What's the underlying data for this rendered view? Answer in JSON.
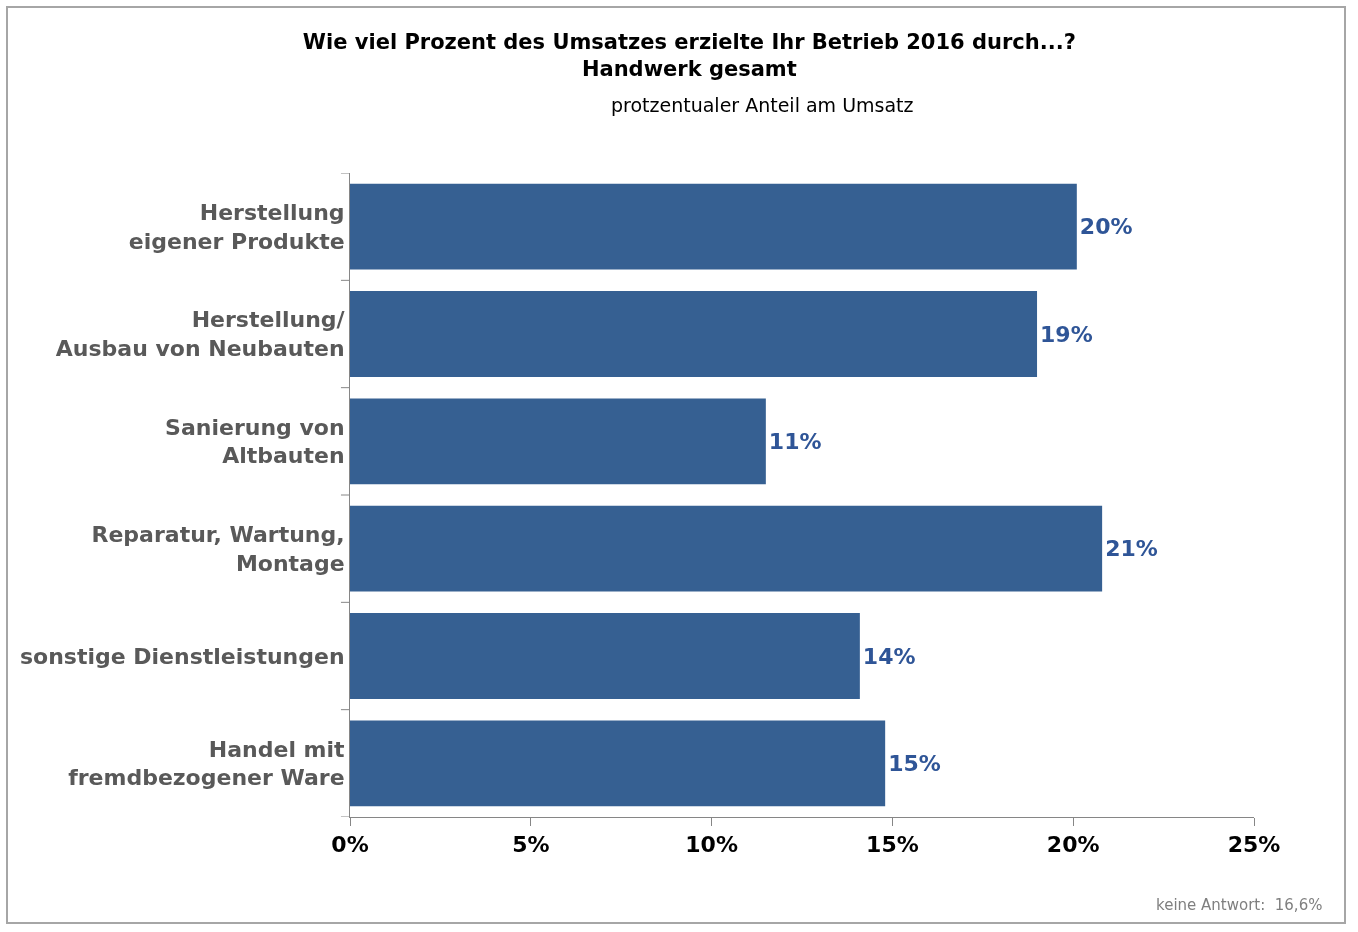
{
  "chart_data": {
    "type": "bar",
    "orientation": "horizontal",
    "title": "Wie viel Prozent des Umsatzes erzielte Ihr Betrieb 2016 durch...?",
    "subtitle": "Handwerk gesamt",
    "annotations": [
      "protzentualer Anteil am Umsatz",
      "keine Antwort:  16,6%"
    ],
    "categories": [
      "Herstellung\neigener Produkte",
      "Herstellung/\nAusbau von Neubauten",
      "Sanierung von\nAltbauten",
      "Reparatur, Wartung,\nMontage",
      "sonstige Dienstleistungen",
      "Handel mit\nfremdbezogener Ware"
    ],
    "values": [
      20.1,
      19.0,
      11.5,
      20.8,
      14.1,
      14.8
    ],
    "value_labels": [
      "20%",
      "19%",
      "11%",
      "21%",
      "14%",
      "15%"
    ],
    "color": "#366092",
    "xlim": [
      0,
      25
    ],
    "xticks": [
      {
        "value": 0,
        "label": "0%"
      },
      {
        "value": 5,
        "label": "5%"
      },
      {
        "value": 10,
        "label": "10%"
      },
      {
        "value": 15,
        "label": "15%"
      },
      {
        "value": 20,
        "label": "20%"
      },
      {
        "value": 25,
        "label": "25%"
      }
    ],
    "grid": false
  }
}
